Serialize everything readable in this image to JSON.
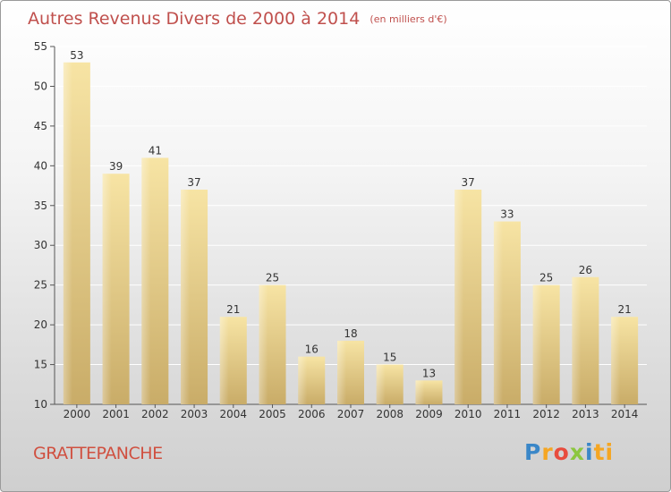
{
  "header": {
    "title": "Autres Revenus Divers de 2000 à 2014",
    "unit": "(en milliers d'€)"
  },
  "footer": {
    "commune": "GRATTEPANCHE",
    "logo": "Proxiti"
  },
  "colors": {
    "title": "#c0504d",
    "bar_light": "#f7e4a4",
    "bar_dark": "#c9ac68",
    "axis": "#333333"
  },
  "chart_data": {
    "type": "bar",
    "title": "Autres Revenus Divers de 2000 à 2014",
    "subtitle": "(en milliers d'€)",
    "xlabel": "",
    "ylabel": "",
    "categories": [
      "2000",
      "2001",
      "2002",
      "2003",
      "2004",
      "2005",
      "2006",
      "2007",
      "2008",
      "2009",
      "2010",
      "2011",
      "2012",
      "2013",
      "2014"
    ],
    "values": [
      53,
      39,
      41,
      37,
      21,
      25,
      16,
      18,
      15,
      13,
      37,
      33,
      25,
      26,
      21
    ],
    "ylim": [
      10,
      55
    ],
    "yticks": [
      10,
      15,
      20,
      25,
      30,
      35,
      40,
      45,
      50,
      55
    ],
    "grid": true,
    "legend": "none"
  }
}
